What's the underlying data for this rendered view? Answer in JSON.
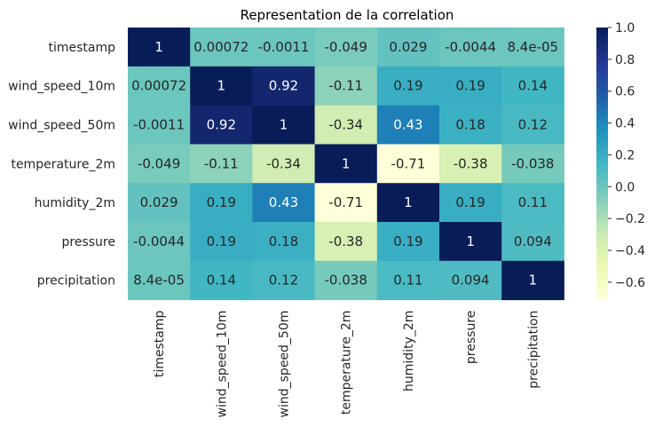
{
  "chart_data": {
    "type": "heatmap",
    "title": "Representation de la correlation",
    "rows": [
      "timestamp",
      "wind_speed_10m",
      "wind_speed_50m",
      "temperature_2m",
      "humidity_2m",
      "pressure",
      "precipitation"
    ],
    "columns": [
      "timestamp",
      "wind_speed_10m",
      "wind_speed_50m",
      "temperature_2m",
      "humidity_2m",
      "pressure",
      "precipitation"
    ],
    "values": [
      [
        1,
        0.00072,
        -0.0011,
        -0.049,
        0.029,
        -0.0044,
        8.4e-05
      ],
      [
        0.00072,
        1,
        0.92,
        -0.11,
        0.19,
        0.19,
        0.14
      ],
      [
        -0.0011,
        0.92,
        1,
        -0.34,
        0.43,
        0.18,
        0.12
      ],
      [
        -0.049,
        -0.11,
        -0.34,
        1,
        -0.71,
        -0.38,
        -0.038
      ],
      [
        0.029,
        0.19,
        0.43,
        -0.71,
        1,
        0.19,
        0.11
      ],
      [
        -0.0044,
        0.19,
        0.18,
        -0.38,
        0.19,
        1,
        0.094
      ],
      [
        8.4e-05,
        0.14,
        0.12,
        -0.038,
        0.11,
        0.094,
        1
      ]
    ],
    "annotations": [
      [
        "1",
        "0.00072",
        "-0.0011",
        "-0.049",
        "0.029",
        "-0.0044",
        "8.4e-05"
      ],
      [
        "0.00072",
        "1",
        "0.92",
        "-0.11",
        "0.19",
        "0.19",
        "0.14"
      ],
      [
        "-0.0011",
        "0.92",
        "1",
        "-0.34",
        "0.43",
        "0.18",
        "0.12"
      ],
      [
        "-0.049",
        "-0.11",
        "-0.34",
        "1",
        "-0.71",
        "-0.38",
        "-0.038"
      ],
      [
        "0.029",
        "0.19",
        "0.43",
        "-0.71",
        "1",
        "0.19",
        "0.11"
      ],
      [
        "-0.0044",
        "0.19",
        "0.18",
        "-0.38",
        "0.19",
        "1",
        "0.094"
      ],
      [
        "8.4e-05",
        "0.14",
        "0.12",
        "-0.038",
        "0.11",
        "0.094",
        "1"
      ]
    ],
    "colormap": "YlGnBu",
    "vmin": -0.71,
    "vmax": 1.0,
    "colorbar_ticks": [
      1.0,
      0.8,
      0.6,
      0.4,
      0.2,
      0.0,
      -0.2,
      -0.4,
      -0.6
    ],
    "colorbar_tick_labels": [
      "1.0",
      "0.8",
      "0.6",
      "0.4",
      "0.2",
      "0.0",
      "−0.2",
      "−0.4",
      "−0.6"
    ],
    "colorbar_stops": [
      "#ffffd9",
      "#edf8b1",
      "#c7e9b4",
      "#7fcdbb",
      "#41b6c4",
      "#1d91c0",
      "#225ea8",
      "#253494",
      "#081d58"
    ],
    "grid": false
  }
}
